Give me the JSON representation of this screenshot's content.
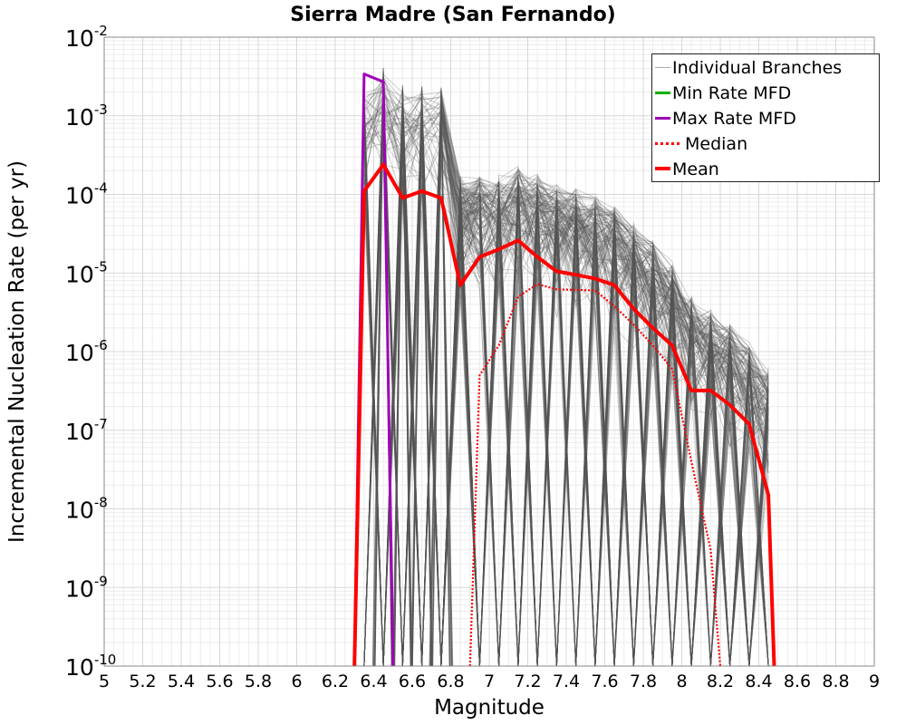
{
  "chart_data": {
    "type": "line",
    "title": "Sierra Madre (San Fernando)",
    "xlabel": "Magnitude",
    "ylabel": "Incremental Nucleation Rate (per yr)",
    "xlim": [
      5,
      9
    ],
    "ylim_exponents": [
      -10,
      -2
    ],
    "yscale": "log",
    "grid": true,
    "legend_position": "top-right",
    "x_ticks": [
      "5",
      "5.2",
      "5.4",
      "5.6",
      "5.8",
      "6",
      "6.2",
      "6.4",
      "6.6",
      "6.8",
      "7",
      "7.2",
      "7.4",
      "7.6",
      "7.8",
      "8",
      "8.2",
      "8.4",
      "8.6",
      "8.8",
      "9"
    ],
    "y_tick_exponents": [
      "-2",
      "-3",
      "-4",
      "-5",
      "-6",
      "-7",
      "-8",
      "-9",
      "-10"
    ],
    "y_tick_base": "10",
    "legend": [
      {
        "label": "Individual Branches",
        "color": "#a9a9a9",
        "style": "thin"
      },
      {
        "label": "Min Rate MFD",
        "color": "#00b000",
        "style": "solid"
      },
      {
        "label": "Max Rate MFD",
        "color": "#a000b8",
        "style": "solid"
      },
      {
        "label": "Median",
        "color": "#ff0000",
        "style": "dotted"
      },
      {
        "label": "Mean",
        "color": "#ff0000",
        "style": "solid"
      }
    ],
    "series": [
      {
        "name": "Mean",
        "color": "#ff0000",
        "x": [
          6.3,
          6.35,
          6.45,
          6.55,
          6.65,
          6.75,
          6.85,
          6.95,
          7.05,
          7.15,
          7.25,
          7.35,
          7.45,
          7.55,
          7.65,
          7.75,
          7.85,
          7.95,
          8.05,
          8.15,
          8.25,
          8.35,
          8.45,
          8.48
        ],
        "y": [
          1e-10,
          0.00011,
          0.00024,
          9e-05,
          0.00011,
          9e-05,
          7e-06,
          1.6e-05,
          2e-05,
          2.6e-05,
          1.6e-05,
          1.05e-05,
          9.5e-06,
          8.5e-06,
          7e-06,
          3.5e-06,
          2e-06,
          1.2e-06,
          3.2e-07,
          3.2e-07,
          2.1e-07,
          1.2e-07,
          1.5e-08,
          1e-10
        ]
      },
      {
        "name": "Median",
        "color": "#ff0000",
        "x": [
          6.9,
          6.95,
          7.05,
          7.15,
          7.25,
          7.35,
          7.45,
          7.55,
          7.65,
          7.75,
          7.85,
          7.95,
          8.05,
          8.15,
          8.2
        ],
        "y": [
          1e-10,
          5e-07,
          1.2e-06,
          5e-06,
          7.2e-06,
          6.2e-06,
          6.1e-06,
          6e-06,
          3.8e-06,
          2.2e-06,
          1.2e-06,
          6e-07,
          4e-08,
          3e-09,
          1e-10
        ]
      },
      {
        "name": "Max Rate MFD",
        "color": "#a000b8",
        "x": [
          6.3,
          6.35,
          6.45,
          6.5
        ],
        "y": [
          1e-10,
          0.0034,
          0.0027,
          1e-10
        ]
      },
      {
        "name": "Individual Branches",
        "color": "#555555",
        "envelope_x": [
          6.35,
          6.45,
          6.55,
          6.65,
          6.75,
          6.85,
          6.95,
          7.05,
          7.15,
          7.25,
          7.35,
          7.45,
          7.55,
          7.65,
          7.75,
          7.85,
          7.95,
          8.05,
          8.15,
          8.25,
          8.35,
          8.45
        ],
        "envelope_y_max": [
          0.0025,
          0.0045,
          0.0025,
          0.0025,
          0.0028,
          0.0002,
          0.0002,
          0.0002,
          0.00026,
          0.0002,
          0.00015,
          0.00013,
          0.00011,
          8e-05,
          5e-05,
          3e-05,
          1.5e-05,
          6e-06,
          4e-06,
          2.5e-06,
          1.5e-06,
          7e-07
        ]
      }
    ]
  }
}
